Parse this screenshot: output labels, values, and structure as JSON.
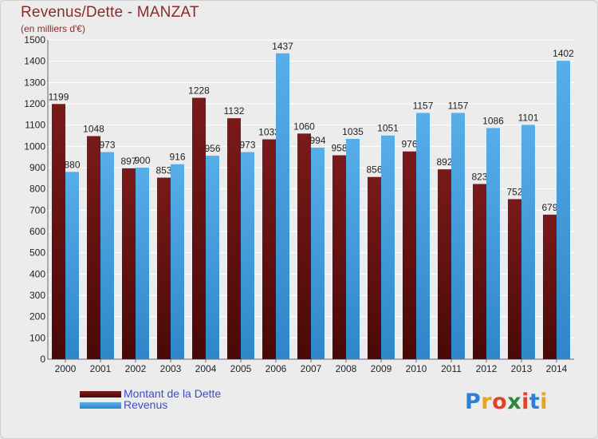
{
  "header": {
    "title": "Revenus/Dette - MANZAT",
    "subtitle": "(en milliers d'€)"
  },
  "legend": {
    "items": [
      {
        "label": "Montant de la Dette"
      },
      {
        "label": "Revenus"
      }
    ]
  },
  "logo": {
    "letters": [
      "P",
      "r",
      "o",
      "x",
      "i",
      "t",
      "i"
    ],
    "colors": [
      "#2f7fd6",
      "#e8a21e",
      "#e0432b",
      "#2e8a3a",
      "#e0432b",
      "#2f7fd6",
      "#e8a21e"
    ]
  },
  "colors": {
    "debt": "#7a1a1a",
    "debt_dark": "#4a0808",
    "revenue": "#57aee8",
    "revenue_dark": "#2f86c8",
    "axis_text": "#222222",
    "grid": "#ffffff",
    "plot_bg": "#ececec"
  },
  "chart_data": {
    "type": "bar",
    "title": "Revenus/Dette - MANZAT",
    "subtitle": "(en milliers d'€)",
    "xlabel": "",
    "ylabel": "",
    "ylim": [
      0,
      1500
    ],
    "ytick_step": 100,
    "grid": true,
    "legend_position": "bottom-left",
    "categories": [
      "2000",
      "2001",
      "2002",
      "2003",
      "2004",
      "2005",
      "2006",
      "2007",
      "2008",
      "2009",
      "2010",
      "2011",
      "2012",
      "2013",
      "2014"
    ],
    "series": [
      {
        "name": "Montant de la Dette",
        "color": "#7a1a1a",
        "values": [
          1199,
          1048,
          897,
          853,
          1228,
          1132,
          1033,
          1060,
          958,
          856,
          976,
          892,
          823,
          752,
          679
        ]
      },
      {
        "name": "Revenus",
        "color": "#57aee8",
        "values": [
          880,
          973,
          900,
          916,
          956,
          973,
          1437,
          994,
          1035,
          1051,
          1157,
          1157,
          1086,
          1101,
          1402
        ]
      }
    ]
  }
}
